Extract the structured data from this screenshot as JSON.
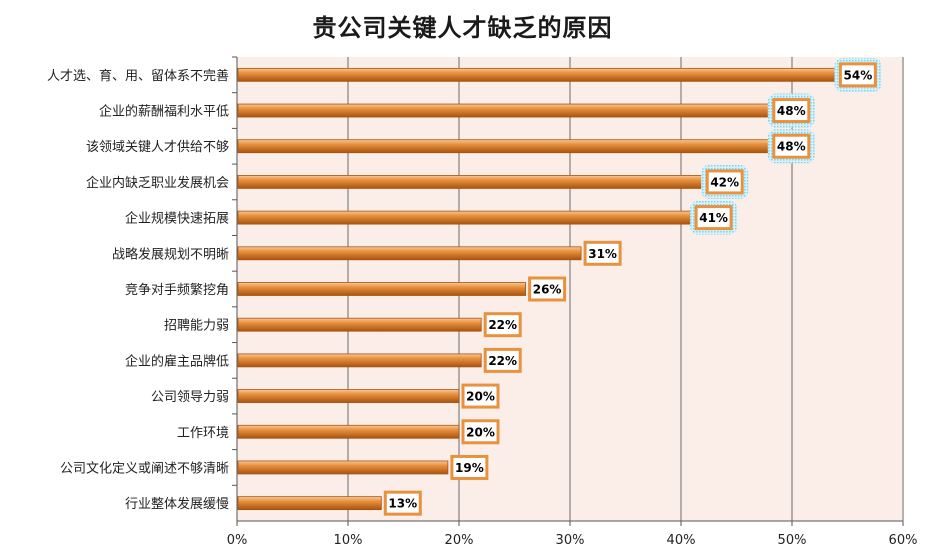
{
  "chart_data": {
    "type": "bar",
    "orientation": "horizontal",
    "title": "贵公司关键人才缺乏的原因",
    "categories": [
      "人才选、育、用、留体系不完善",
      "企业的薪酬福利水平低",
      "该领域关键人才供给不够",
      "企业内缺乏职业发展机会",
      "企业规模快速拓展",
      "战略发展规划不明晰",
      "竞争对手频繁挖角",
      "招聘能力弱",
      "企业的雇主品牌低",
      "公司领导力弱",
      "工作环境",
      "公司文化定义或阐述不够清晰",
      "行业整体发展缓慢"
    ],
    "values": [
      54,
      48,
      48,
      42,
      41,
      31,
      26,
      22,
      22,
      20,
      20,
      19,
      13
    ],
    "data_labels": [
      "54%",
      "48%",
      "48%",
      "42%",
      "41%",
      "31%",
      "26%",
      "22%",
      "22%",
      "20%",
      "20%",
      "19%",
      "13%"
    ],
    "highlighted": [
      true,
      true,
      true,
      true,
      true,
      false,
      false,
      false,
      false,
      false,
      false,
      false,
      false
    ],
    "xlim": [
      0,
      60
    ],
    "xticks": [
      0,
      10,
      20,
      30,
      40,
      50,
      60
    ],
    "xtick_labels": [
      "0%",
      "10%",
      "20%",
      "30%",
      "40%",
      "50%",
      "60%"
    ],
    "grid": true,
    "colors": {
      "bar": "#e8913f",
      "bar_light": "#f7c89a",
      "bar_dark": "#a85410",
      "plot_bg": "#fbeee8",
      "gridline": "#8a8a8a",
      "label_border": "#e8913f",
      "highlight_glow": "#7fd3ea"
    }
  }
}
